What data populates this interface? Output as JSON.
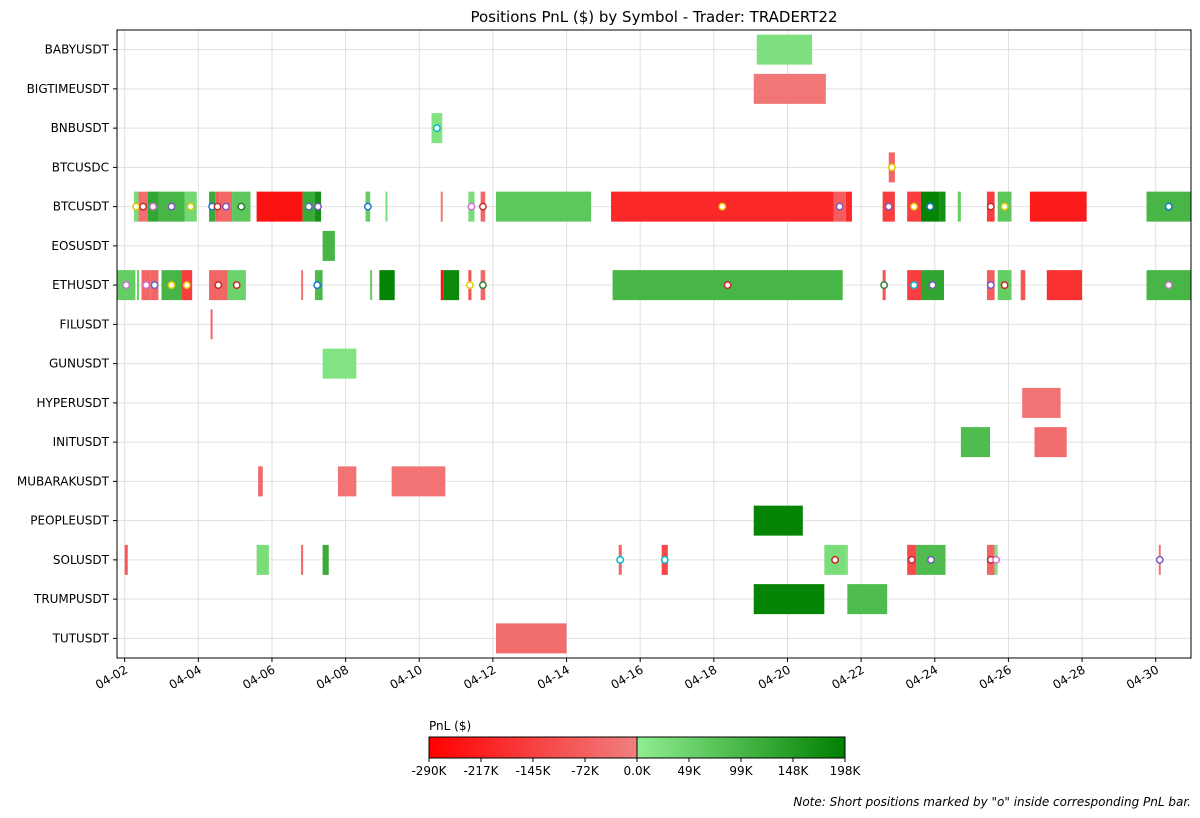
{
  "chart_data": {
    "type": "bar",
    "subtype": "horizontal-timeline",
    "title": "Positions PnL ($) by Symbol - Trader: TRADERT22",
    "note": "Note: Short positions marked by \"o\" inside corresponding PnL bar.",
    "x_axis": {
      "type": "date",
      "range": [
        "04-01 19:00",
        "04-30 23:00"
      ],
      "ticks": [
        "04-02",
        "04-04",
        "04-06",
        "04-08",
        "04-10",
        "04-12",
        "04-14",
        "04-16",
        "04-18",
        "04-20",
        "04-22",
        "04-24",
        "04-26",
        "04-28",
        "04-30"
      ],
      "grid": true
    },
    "categories": [
      "BABYUSDT",
      "BIGTIMEUSDT",
      "BNBUSDT",
      "BTCUSDC",
      "BTCUSDT",
      "EOSUSDT",
      "ETHUSDT",
      "FILUSDT",
      "GUNUSDT",
      "HYPERUSDT",
      "INITUSDT",
      "MUBARAKUSDT",
      "PEOPLEUSDT",
      "SOLUSDT",
      "TRUMPUSDT",
      "TUTUSDT"
    ],
    "colorbar": {
      "label": "PnL ($)",
      "ticks": [
        "-290K",
        "-217K",
        "-145K",
        "-72K",
        "0.0K",
        "49K",
        "99K",
        "148K",
        "198K"
      ],
      "min": -290000,
      "max": 198000,
      "colors": {
        "neg_max": "#ff0000",
        "neg_zero": "#f08080",
        "pos_zero": "#90ee90",
        "pos_max": "#008000"
      }
    },
    "positions": [
      {
        "symbol": "BABYUSDT",
        "start": "04-19 04:00",
        "end": "04-20 16:00",
        "pnl": 25000
      },
      {
        "symbol": "BIGTIMEUSDT",
        "start": "04-19 02:00",
        "end": "04-21 01:00",
        "pnl": -20000
      },
      {
        "symbol": "BNBUSDT",
        "start": "04-10 08:00",
        "end": "04-10 15:00",
        "pnl": 20000,
        "short": true,
        "marker_color": "#00bcd4"
      },
      {
        "symbol": "BTCUSDC",
        "start": "04-22 18:00",
        "end": "04-22 22:00",
        "pnl": -60000,
        "short": true,
        "marker_color": "#e6c800"
      },
      {
        "symbol": "BTCUSDT",
        "start": "04-02 06:00",
        "end": "04-02 09:00",
        "pnl": 30000,
        "short": true,
        "marker_color": "#e6c800"
      },
      {
        "symbol": "BTCUSDT",
        "start": "04-02 09:00",
        "end": "04-02 15:00",
        "pnl": -40000,
        "short": true,
        "marker_color": "#c62828"
      },
      {
        "symbol": "BTCUSDT",
        "start": "04-02 15:00",
        "end": "04-02 22:00",
        "pnl": 130000,
        "short": true,
        "marker_color": "#d070d0"
      },
      {
        "symbol": "BTCUSDT",
        "start": "04-02 22:00",
        "end": "04-03 15:00",
        "pnl": 100000,
        "short": true,
        "marker_color": "#7e57c2"
      },
      {
        "symbol": "BTCUSDT",
        "start": "04-03 15:00",
        "end": "04-03 23:00",
        "pnl": 40000,
        "short": true,
        "marker_color": "#e6c800"
      },
      {
        "symbol": "BTCUSDT",
        "start": "04-04 07:00",
        "end": "04-04 11:00",
        "pnl": 120000,
        "short": true,
        "marker_color": "#1976d2"
      },
      {
        "symbol": "BTCUSDT",
        "start": "04-04 11:00",
        "end": "04-04 14:00",
        "pnl": -80000,
        "short": true,
        "marker_color": "#c62828"
      },
      {
        "symbol": "BTCUSDT",
        "start": "04-04 14:00",
        "end": "04-04 22:00",
        "pnl": -60000,
        "short": true,
        "marker_color": "#7e57c2"
      },
      {
        "symbol": "BTCUSDT",
        "start": "04-04 22:00",
        "end": "04-05 10:00",
        "pnl": 70000,
        "short": true,
        "marker_color": "#2e7d32"
      },
      {
        "symbol": "BTCUSDT",
        "start": "04-05 14:00",
        "end": "04-06 20:00",
        "pnl": -250000
      },
      {
        "symbol": "BTCUSDT",
        "start": "04-06 20:00",
        "end": "04-07 04:00",
        "pnl": 120000,
        "short": true,
        "marker_color": "#5c6bc0"
      },
      {
        "symbol": "BTCUSDT",
        "start": "04-07 04:00",
        "end": "04-07 08:00",
        "pnl": 170000,
        "short": true,
        "marker_color": "#7e57c2"
      },
      {
        "symbol": "BTCUSDT",
        "start": "04-08 13:00",
        "end": "04-08 16:00",
        "pnl": 60000,
        "short": true,
        "marker_color": "#1976d2"
      },
      {
        "symbol": "BTCUSDT",
        "start": "04-09 02:00",
        "end": "04-09 03:00",
        "pnl": 30000
      },
      {
        "symbol": "BTCUSDT",
        "start": "04-10 14:00",
        "end": "04-10 15:00",
        "pnl": -20000
      },
      {
        "symbol": "BTCUSDT",
        "start": "04-11 08:00",
        "end": "04-11 12:00",
        "pnl": 30000,
        "short": true,
        "marker_color": "#d070d0"
      },
      {
        "symbol": "BTCUSDT",
        "start": "04-11 16:00",
        "end": "04-11 19:00",
        "pnl": -60000,
        "short": true,
        "marker_color": "#c62828"
      },
      {
        "symbol": "BTCUSDT",
        "start": "04-12 02:00",
        "end": "04-14 16:00",
        "pnl": 70000
      },
      {
        "symbol": "BTCUSDT",
        "start": "04-15 05:00",
        "end": "04-21 06:00",
        "pnl": -200000,
        "short": true,
        "marker_color": "#e6c800"
      },
      {
        "symbol": "BTCUSDT",
        "start": "04-21 06:00",
        "end": "04-21 14:00",
        "pnl": -80000,
        "short": true,
        "marker_color": "#7e57c2"
      },
      {
        "symbol": "BTCUSDT",
        "start": "04-21 14:00",
        "end": "04-21 18:00",
        "pnl": -200000
      },
      {
        "symbol": "BTCUSDT",
        "start": "04-22 14:00",
        "end": "04-22 22:00",
        "pnl": -150000,
        "short": true,
        "marker_color": "#7e57c2"
      },
      {
        "symbol": "BTCUSDT",
        "start": "04-23 06:00",
        "end": "04-23 15:00",
        "pnl": -150000,
        "short": true,
        "marker_color": "#e6c800"
      },
      {
        "symbol": "BTCUSDT",
        "start": "04-23 15:00",
        "end": "04-24 03:00",
        "pnl": 190000,
        "short": true,
        "marker_color": "#1976d2"
      },
      {
        "symbol": "BTCUSDT",
        "start": "04-24 03:00",
        "end": "04-24 07:00",
        "pnl": 170000
      },
      {
        "symbol": "BTCUSDT",
        "start": "04-24 15:00",
        "end": "04-24 17:00",
        "pnl": 60000
      },
      {
        "symbol": "BTCUSDT",
        "start": "04-25 10:00",
        "end": "04-25 15:00",
        "pnl": -150000,
        "short": true,
        "marker_color": "#c62828"
      },
      {
        "symbol": "BTCUSDT",
        "start": "04-25 17:00",
        "end": "04-26 02:00",
        "pnl": 70000,
        "short": true,
        "marker_color": "#e6c800"
      },
      {
        "symbol": "BTCUSDT",
        "start": "04-26 14:00",
        "end": "04-28 03:00",
        "pnl": -230000
      },
      {
        "symbol": "BTCUSDT",
        "start": "04-29 18:00",
        "end": "04-30 23:00",
        "pnl": 100000,
        "short": true,
        "marker_color": "#1976d2"
      },
      {
        "symbol": "EOSUSDT",
        "start": "04-07 09:00",
        "end": "04-07 17:00",
        "pnl": 100000
      },
      {
        "symbol": "ETHUSDT",
        "start": "04-01 19:00",
        "end": "04-02 07:00",
        "pnl": 60000,
        "short": true,
        "marker_color": "#d070d0"
      },
      {
        "symbol": "ETHUSDT",
        "start": "04-02 08:00",
        "end": "04-02 09:00",
        "pnl": 60000
      },
      {
        "symbol": "ETHUSDT",
        "start": "04-02 11:00",
        "end": "04-02 17:00",
        "pnl": -60000,
        "short": true,
        "marker_color": "#d070d0"
      },
      {
        "symbol": "ETHUSDT",
        "start": "04-02 17:00",
        "end": "04-02 22:00",
        "pnl": -60000,
        "short": true,
        "marker_color": "#5c6bc0"
      },
      {
        "symbol": "ETHUSDT",
        "start": "04-03 00:00",
        "end": "04-03 13:00",
        "pnl": 100000,
        "short": true,
        "marker_color": "#e6c800"
      },
      {
        "symbol": "ETHUSDT",
        "start": "04-03 13:00",
        "end": "04-03 20:00",
        "pnl": -150000,
        "short": true,
        "marker_color": "#e6c800"
      },
      {
        "symbol": "ETHUSDT",
        "start": "04-04 07:00",
        "end": "04-04 19:00",
        "pnl": -60000,
        "short": true,
        "marker_color": "#c62828"
      },
      {
        "symbol": "ETHUSDT",
        "start": "04-04 19:00",
        "end": "04-05 07:00",
        "pnl": 50000,
        "short": true,
        "marker_color": "#c62828"
      },
      {
        "symbol": "ETHUSDT",
        "start": "04-06 19:00",
        "end": "04-06 20:00",
        "pnl": -30000
      },
      {
        "symbol": "ETHUSDT",
        "start": "04-07 04:00",
        "end": "04-07 07:00",
        "pnl": 90000,
        "short": true,
        "marker_color": "#1976d2"
      },
      {
        "symbol": "ETHUSDT",
        "start": "04-07 07:00",
        "end": "04-07 09:00",
        "pnl": 100000
      },
      {
        "symbol": "ETHUSDT",
        "start": "04-08 16:00",
        "end": "04-08 17:00",
        "pnl": 60000
      },
      {
        "symbol": "ETHUSDT",
        "start": "04-08 22:00",
        "end": "04-09 08:00",
        "pnl": 190000
      },
      {
        "symbol": "ETHUSDT",
        "start": "04-10 14:00",
        "end": "04-10 16:00",
        "pnl": -250000
      },
      {
        "symbol": "ETHUSDT",
        "start": "04-10 16:00",
        "end": "04-11 02:00",
        "pnl": 180000
      },
      {
        "symbol": "ETHUSDT",
        "start": "04-11 08:00",
        "end": "04-11 10:00",
        "pnl": -100000,
        "short": true,
        "marker_color": "#e6c800"
      },
      {
        "symbol": "ETHUSDT",
        "start": "04-11 16:00",
        "end": "04-11 19:00",
        "pnl": -60000,
        "short": true,
        "marker_color": "#2e7d32"
      },
      {
        "symbol": "ETHUSDT",
        "start": "04-15 06:00",
        "end": "04-21 12:00",
        "pnl": 100000,
        "short": true,
        "marker_color": "#c62828"
      },
      {
        "symbol": "ETHUSDT",
        "start": "04-22 14:00",
        "end": "04-22 16:00",
        "pnl": -100000,
        "short": true,
        "marker_color": "#2e7d32"
      },
      {
        "symbol": "ETHUSDT",
        "start": "04-23 06:00",
        "end": "04-23 15:00",
        "pnl": -150000,
        "short": true,
        "marker_color": "#00bcd4"
      },
      {
        "symbol": "ETHUSDT",
        "start": "04-23 15:00",
        "end": "04-24 06:00",
        "pnl": 130000,
        "short": true,
        "marker_color": "#7e57c2"
      },
      {
        "symbol": "ETHUSDT",
        "start": "04-25 10:00",
        "end": "04-25 15:00",
        "pnl": -80000,
        "short": true,
        "marker_color": "#7e57c2"
      },
      {
        "symbol": "ETHUSDT",
        "start": "04-25 17:00",
        "end": "04-26 02:00",
        "pnl": 60000,
        "short": true,
        "marker_color": "#c62828"
      },
      {
        "symbol": "ETHUSDT",
        "start": "04-26 08:00",
        "end": "04-26 11:00",
        "pnl": -100000
      },
      {
        "symbol": "ETHUSDT",
        "start": "04-27 01:00",
        "end": "04-28 00:00",
        "pnl": -180000
      },
      {
        "symbol": "ETHUSDT",
        "start": "04-29 18:00",
        "end": "04-30 23:00",
        "pnl": 100000,
        "short": true,
        "marker_color": "#d070d0"
      },
      {
        "symbol": "FILUSDT",
        "start": "04-04 08:00",
        "end": "04-04 09:00",
        "pnl": -60000
      },
      {
        "symbol": "GUNUSDT",
        "start": "04-07 09:00",
        "end": "04-08 07:00",
        "pnl": 20000
      },
      {
        "symbol": "HYPERUSDT",
        "start": "04-26 09:00",
        "end": "04-27 10:00",
        "pnl": -30000
      },
      {
        "symbol": "INITUSDT",
        "start": "04-24 17:00",
        "end": "04-25 12:00",
        "pnl": 90000
      },
      {
        "symbol": "INITUSDT",
        "start": "04-26 17:00",
        "end": "04-27 14:00",
        "pnl": -40000
      },
      {
        "symbol": "MUBARAKUSDT",
        "start": "04-05 15:00",
        "end": "04-05 18:00",
        "pnl": -60000
      },
      {
        "symbol": "MUBARAKUSDT",
        "start": "04-07 19:00",
        "end": "04-08 07:00",
        "pnl": -30000
      },
      {
        "symbol": "MUBARAKUSDT",
        "start": "04-09 06:00",
        "end": "04-10 17:00",
        "pnl": -30000
      },
      {
        "symbol": "PEOPLEUSDT",
        "start": "04-19 02:00",
        "end": "04-20 10:00",
        "pnl": 190000
      },
      {
        "symbol": "SOLUSDT",
        "start": "04-02 00:00",
        "end": "04-02 02:00",
        "pnl": -90000
      },
      {
        "symbol": "SOLUSDT",
        "start": "04-05 14:00",
        "end": "04-05 22:00",
        "pnl": 30000
      },
      {
        "symbol": "SOLUSDT",
        "start": "04-06 19:00",
        "end": "04-06 20:00",
        "pnl": -60000
      },
      {
        "symbol": "SOLUSDT",
        "start": "04-07 09:00",
        "end": "04-07 13:00",
        "pnl": 120000
      },
      {
        "symbol": "SOLUSDT",
        "start": "04-15 10:00",
        "end": "04-15 12:00",
        "pnl": -60000,
        "short": true,
        "marker_color": "#00bcd4"
      },
      {
        "symbol": "SOLUSDT",
        "start": "04-16 14:00",
        "end": "04-16 18:00",
        "pnl": -130000,
        "short": true,
        "marker_color": "#00bcd4"
      },
      {
        "symbol": "SOLUSDT",
        "start": "04-21 00:00",
        "end": "04-21 14:00",
        "pnl": 30000,
        "short": true,
        "marker_color": "#c62828"
      },
      {
        "symbol": "SOLUSDT",
        "start": "04-21 14:00",
        "end": "04-21 15:00",
        "pnl": 30000
      },
      {
        "symbol": "SOLUSDT",
        "start": "04-23 06:00",
        "end": "04-23 12:00",
        "pnl": -120000,
        "short": true,
        "marker_color": "#c62828"
      },
      {
        "symbol": "SOLUSDT",
        "start": "04-23 12:00",
        "end": "04-24 07:00",
        "pnl": 90000,
        "short": true,
        "marker_color": "#7e57c2"
      },
      {
        "symbol": "SOLUSDT",
        "start": "04-25 10:00",
        "end": "04-25 15:00",
        "pnl": -60000,
        "short": true,
        "marker_color": "#c62828"
      },
      {
        "symbol": "SOLUSDT",
        "start": "04-25 15:00",
        "end": "04-25 17:00",
        "pnl": 20000,
        "short": true,
        "marker_color": "#d070d0"
      },
      {
        "symbol": "SOLUSDT",
        "start": "04-30 02:00",
        "end": "04-30 03:00",
        "pnl": -30000,
        "short": true,
        "marker_color": "#7e57c2"
      },
      {
        "symbol": "TRUMPUSDT",
        "start": "04-19 02:00",
        "end": "04-21 00:00",
        "pnl": 190000
      },
      {
        "symbol": "TRUMPUSDT",
        "start": "04-21 15:00",
        "end": "04-22 17:00",
        "pnl": 90000
      },
      {
        "symbol": "TUTUSDT",
        "start": "04-12 02:00",
        "end": "04-14 00:00",
        "pnl": -40000
      }
    ]
  }
}
